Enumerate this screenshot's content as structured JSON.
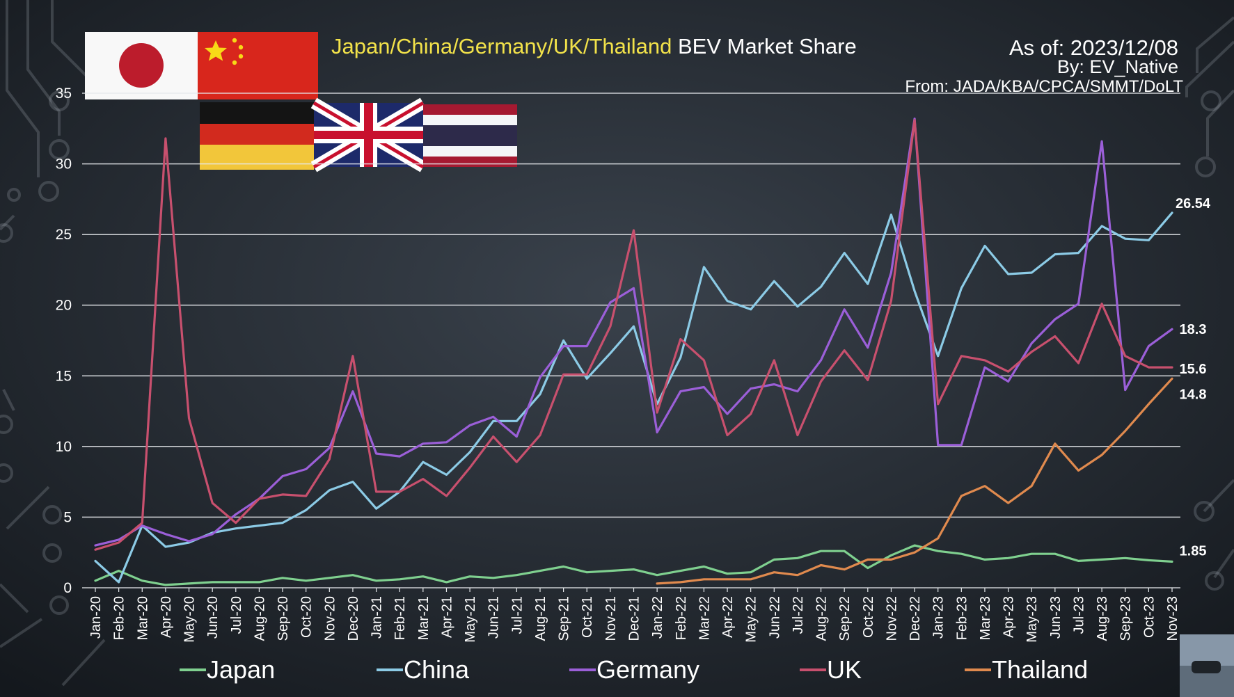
{
  "header": {
    "title_countries": "Japan/China/Germany/UK/Thailand",
    "title_rest": " BEV Market Share",
    "as_of": "As of: 2023/12/08",
    "by": "By: EV_Native",
    "from": "From: JADA/KBA/CPCA/SMMT/DoLT"
  },
  "flags": [
    "japan-flag",
    "china-flag",
    "germany-flag",
    "uk-flag",
    "thailand-flag"
  ],
  "colors": {
    "title_highlight": "#f2e24a",
    "Japan": "#7fd08f",
    "China": "#8ccbe6",
    "Germany": "#9b5fd8",
    "UK": "#c8506e",
    "Thailand": "#e08a4e"
  },
  "chart_data": {
    "type": "line",
    "title": "Japan/China/Germany/UK/Thailand BEV Market Share",
    "xlabel": "",
    "ylabel": "",
    "ylim": [
      0,
      35
    ],
    "yticks": [
      0,
      5,
      10,
      15,
      20,
      25,
      30,
      35
    ],
    "grid": true,
    "legend_position": "bottom",
    "categories": [
      "Jan-20",
      "Feb-20",
      "Mar-20",
      "Apr-20",
      "May-20",
      "Jun-20",
      "Jul-20",
      "Aug-20",
      "Sep-20",
      "Oct-20",
      "Nov-20",
      "Dec-20",
      "Jan-21",
      "Feb-21",
      "Mar-21",
      "Apr-21",
      "May-21",
      "Jun-21",
      "Jul-21",
      "Aug-21",
      "Sep-21",
      "Oct-21",
      "Nov-21",
      "Dec-21",
      "Jan-22",
      "Feb-22",
      "Mar-22",
      "Apr-22",
      "May-22",
      "Jun-22",
      "Jul-22",
      "Aug-22",
      "Sep-22",
      "Oct-22",
      "Nov-22",
      "Dec-22",
      "Jan-23",
      "Feb-23",
      "Mar-23",
      "Apr-23",
      "May-23",
      "Jun-23",
      "Jul-23",
      "Aug-23",
      "Sep-23",
      "Oct-23",
      "Nov-23"
    ],
    "series": [
      {
        "name": "Japan",
        "values": [
          0.5,
          1.2,
          0.5,
          0.2,
          0.3,
          0.4,
          0.4,
          0.4,
          0.7,
          0.5,
          0.7,
          0.9,
          0.5,
          0.6,
          0.8,
          0.4,
          0.8,
          0.7,
          0.9,
          1.2,
          1.5,
          1.1,
          1.2,
          1.3,
          0.9,
          1.2,
          1.5,
          1.0,
          1.1,
          2.0,
          2.1,
          2.6,
          2.6,
          1.4,
          2.3,
          3.0,
          2.6,
          2.4,
          2.0,
          2.1,
          2.4,
          2.4,
          1.9,
          2.0,
          2.1,
          1.95,
          1.85
        ]
      },
      {
        "name": "China",
        "values": [
          1.9,
          0.4,
          4.4,
          2.9,
          3.2,
          3.9,
          4.2,
          4.4,
          4.6,
          5.5,
          6.9,
          7.5,
          5.6,
          6.8,
          8.9,
          8.0,
          9.6,
          11.8,
          11.8,
          13.7,
          17.5,
          14.8,
          16.6,
          18.5,
          13.0,
          16.3,
          22.7,
          20.3,
          19.7,
          21.7,
          19.9,
          21.3,
          23.7,
          21.5,
          26.4,
          21.0,
          16.4,
          21.2,
          24.2,
          22.2,
          22.3,
          23.6,
          23.7,
          25.6,
          24.7,
          24.6,
          26.54
        ]
      },
      {
        "name": "Germany",
        "values": [
          3.0,
          3.4,
          4.4,
          3.8,
          3.3,
          3.8,
          5.2,
          6.3,
          7.9,
          8.4,
          9.9,
          13.9,
          9.5,
          9.3,
          10.2,
          10.3,
          11.5,
          12.1,
          10.7,
          14.9,
          17.1,
          17.1,
          20.2,
          21.2,
          11.0,
          13.9,
          14.2,
          12.3,
          14.1,
          14.4,
          13.9,
          16.1,
          19.7,
          17.0,
          22.3,
          33.2,
          10.1,
          10.1,
          15.6,
          14.6,
          17.3,
          19.0,
          20.1,
          31.6,
          14.0,
          17.1,
          18.3
        ]
      },
      {
        "name": "UK",
        "values": [
          2.7,
          3.2,
          4.6,
          31.8,
          12.0,
          6.0,
          4.6,
          6.3,
          6.6,
          6.5,
          9.1,
          16.4,
          6.8,
          6.8,
          7.7,
          6.5,
          8.5,
          10.7,
          8.9,
          10.8,
          15.1,
          15.1,
          18.5,
          25.3,
          12.4,
          17.6,
          16.1,
          10.8,
          12.3,
          16.1,
          10.8,
          14.6,
          16.8,
          14.7,
          20.3,
          33.1,
          13.0,
          16.4,
          16.1,
          15.3,
          16.7,
          17.8,
          15.9,
          20.1,
          16.4,
          15.6,
          15.6
        ]
      },
      {
        "name": "Thailand",
        "values": [
          null,
          null,
          null,
          null,
          null,
          null,
          null,
          null,
          null,
          null,
          null,
          null,
          null,
          null,
          null,
          null,
          null,
          null,
          null,
          null,
          null,
          null,
          null,
          null,
          0.3,
          0.4,
          0.6,
          0.6,
          0.6,
          1.1,
          0.9,
          1.6,
          1.3,
          2.0,
          2.0,
          2.5,
          3.5,
          6.5,
          7.2,
          6.0,
          7.2,
          10.2,
          8.3,
          9.4,
          11.1,
          13.0,
          14.8
        ]
      }
    ],
    "end_labels": [
      {
        "series": "China",
        "text": "26.54"
      },
      {
        "series": "Germany",
        "text": "18.3"
      },
      {
        "series": "UK",
        "text": "15.6"
      },
      {
        "series": "Thailand",
        "text": "14.8"
      },
      {
        "series": "Japan",
        "text": "1.85"
      }
    ]
  }
}
